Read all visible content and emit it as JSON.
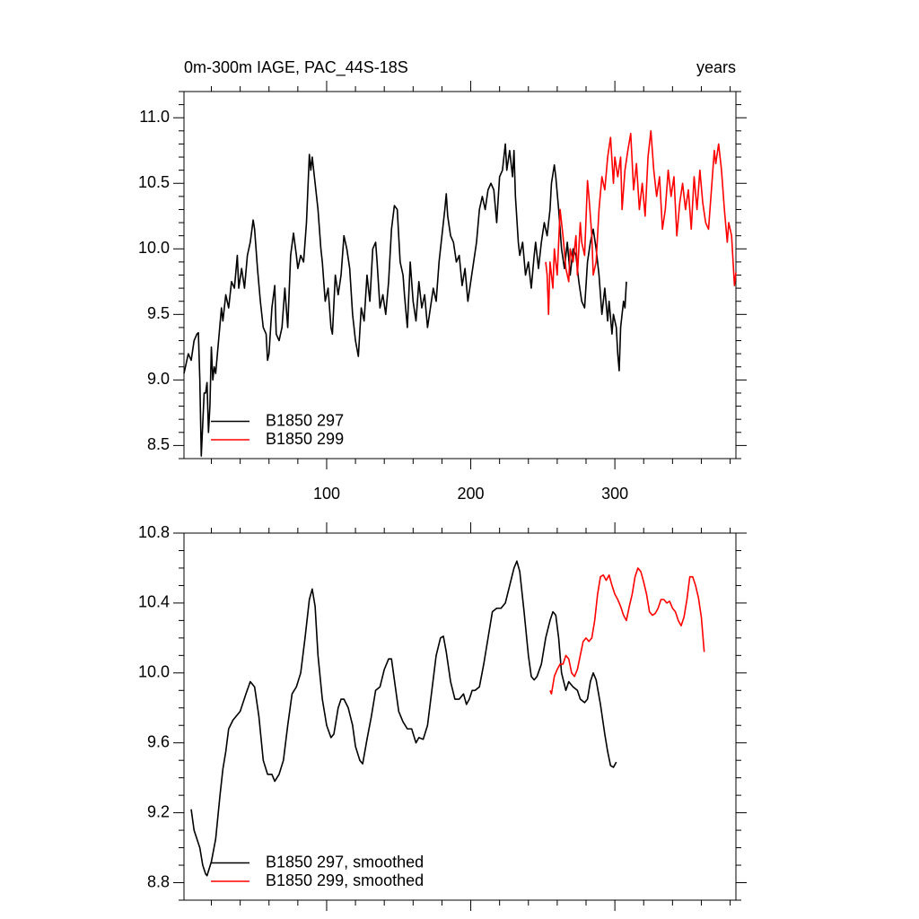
{
  "chart_data": [
    {
      "type": "line",
      "title": "0m-300m IAGE, PAC_44S-18S",
      "right_title": "years",
      "xlim": [
        1,
        384
      ],
      "xticks": [
        100,
        200,
        300
      ],
      "xminor": 5,
      "ylim": [
        8.4,
        11.2
      ],
      "yticks": [
        {
          "value": 8.5,
          "label": "8.5"
        },
        {
          "value": 9.0,
          "label": "9.0"
        },
        {
          "value": 9.5,
          "label": "9.5"
        },
        {
          "value": 10.0,
          "label": "10.0"
        },
        {
          "value": 10.5,
          "label": "10.5"
        },
        {
          "value": 11.0,
          "label": "11.0"
        }
      ],
      "yminor": 5,
      "xtick_labels": true,
      "legend": "bottom-left",
      "series": [
        {
          "name": "B1850 297",
          "color": "#000000",
          "x": [
            1,
            4,
            6,
            8,
            10,
            11,
            12,
            13,
            15,
            16,
            17,
            18,
            19,
            20,
            21,
            22,
            23,
            25,
            27,
            28,
            30,
            32,
            34,
            36,
            38,
            39,
            41,
            43,
            45,
            47,
            49,
            50,
            52,
            54,
            56,
            58,
            59,
            60,
            62,
            64,
            65,
            67,
            69,
            71,
            73,
            75,
            77,
            79,
            80,
            82,
            84,
            86,
            88,
            89,
            90,
            92,
            94,
            96,
            97,
            99,
            101,
            103,
            104,
            106,
            108,
            110,
            112,
            114,
            116,
            118,
            120,
            122,
            124,
            126,
            128,
            130,
            132,
            134,
            135,
            137,
            139,
            141,
            143,
            145,
            147,
            149,
            151,
            153,
            154,
            156,
            158,
            160,
            162,
            164,
            166,
            168,
            170,
            172,
            174,
            176,
            178,
            180,
            182,
            183,
            184,
            186,
            188,
            190,
            192,
            194,
            196,
            198,
            200,
            202,
            204,
            206,
            208,
            210,
            212,
            214,
            216,
            218,
            220,
            222,
            224,
            225,
            227,
            229,
            230,
            231,
            233,
            234,
            236,
            238,
            240,
            242,
            244,
            245,
            247,
            249,
            251,
            253,
            255,
            256,
            258,
            259,
            261,
            263,
            265,
            267,
            269,
            271,
            273,
            275,
            277,
            279,
            281,
            283,
            285,
            287,
            289,
            291,
            293,
            295,
            296,
            298,
            299,
            301,
            302,
            303,
            304,
            306,
            307,
            308
          ],
          "values": [
            9.05,
            9.2,
            9.15,
            9.3,
            9.35,
            9.36,
            9.0,
            8.42,
            8.9,
            8.9,
            8.98,
            8.6,
            8.8,
            9.25,
            9.0,
            9.1,
            9.05,
            9.3,
            9.55,
            9.45,
            9.65,
            9.55,
            9.75,
            9.7,
            9.95,
            9.7,
            9.85,
            9.7,
            9.95,
            10.05,
            10.22,
            10.15,
            9.85,
            9.6,
            9.4,
            9.35,
            9.15,
            9.2,
            9.55,
            9.72,
            9.35,
            9.3,
            9.4,
            9.7,
            9.4,
            9.95,
            10.12,
            9.95,
            9.85,
            9.95,
            9.9,
            10.2,
            10.72,
            10.6,
            10.7,
            10.5,
            10.3,
            10.0,
            9.9,
            9.6,
            9.7,
            9.4,
            9.35,
            9.8,
            9.65,
            9.8,
            10.1,
            10.0,
            9.85,
            9.5,
            9.3,
            9.18,
            9.55,
            9.45,
            9.8,
            9.6,
            10.0,
            10.05,
            9.9,
            9.55,
            9.65,
            9.5,
            9.75,
            10.15,
            10.33,
            10.3,
            9.9,
            9.8,
            9.65,
            9.4,
            9.9,
            9.6,
            9.45,
            9.75,
            9.55,
            9.65,
            9.4,
            9.55,
            9.7,
            9.6,
            9.9,
            10.1,
            10.3,
            10.42,
            10.25,
            10.1,
            10.05,
            9.9,
            9.95,
            9.72,
            9.85,
            9.6,
            9.75,
            9.9,
            10.05,
            10.3,
            10.4,
            10.3,
            10.45,
            10.5,
            10.45,
            10.2,
            10.55,
            10.6,
            10.8,
            10.6,
            10.75,
            10.55,
            10.75,
            10.4,
            10.05,
            9.95,
            10.05,
            9.8,
            9.9,
            9.7,
            9.95,
            10.05,
            9.85,
            10.05,
            10.2,
            10.1,
            10.3,
            10.5,
            10.64,
            10.55,
            10.3,
            10.0,
            9.85,
            10.05,
            9.8,
            10.0,
            9.95,
            9.75,
            9.6,
            9.55,
            9.9,
            10.05,
            10.15,
            10.0,
            9.8,
            9.5,
            9.7,
            9.45,
            9.6,
            9.35,
            9.5,
            9.4,
            9.2,
            9.07,
            9.4,
            9.6,
            9.55,
            9.75
          ]
        },
        {
          "name": "B1850 299",
          "color": "#ff0000",
          "x": [
            252,
            253,
            254,
            255,
            257,
            258,
            260,
            262,
            264,
            266,
            268,
            269,
            271,
            273,
            274,
            276,
            277,
            279,
            281,
            282,
            284,
            285,
            287,
            289,
            291,
            293,
            295,
            297,
            299,
            300,
            302,
            304,
            305,
            307,
            309,
            311,
            313,
            315,
            317,
            319,
            321,
            323,
            325,
            327,
            329,
            331,
            333,
            335,
            337,
            339,
            341,
            343,
            345,
            347,
            349,
            351,
            353,
            355,
            357,
            359,
            361,
            363,
            365,
            367,
            369,
            370,
            372,
            374,
            376,
            378,
            379,
            381,
            383,
            384
          ],
          "values": [
            9.9,
            9.8,
            9.5,
            9.9,
            9.7,
            10.0,
            9.8,
            10.3,
            10.1,
            9.85,
            9.75,
            10.0,
            9.9,
            10.1,
            9.8,
            10.2,
            10.05,
            9.95,
            10.52,
            10.4,
            10.1,
            9.8,
            9.9,
            10.3,
            10.55,
            10.45,
            10.7,
            10.85,
            10.5,
            10.7,
            10.55,
            10.7,
            10.3,
            10.6,
            10.75,
            10.88,
            10.45,
            10.65,
            10.3,
            10.5,
            10.25,
            10.7,
            10.9,
            10.6,
            10.4,
            10.55,
            10.15,
            10.3,
            10.6,
            10.4,
            10.55,
            10.1,
            10.35,
            10.5,
            10.3,
            10.45,
            10.15,
            10.55,
            10.3,
            10.6,
            10.35,
            10.2,
            10.15,
            10.45,
            10.75,
            10.65,
            10.8,
            10.6,
            10.3,
            10.05,
            10.2,
            10.1,
            9.72,
            9.82
          ]
        }
      ]
    },
    {
      "type": "line",
      "xlim": [
        1,
        384
      ],
      "xticks": [
        100,
        200,
        300
      ],
      "xminor": 5,
      "ylim": [
        8.7,
        10.8
      ],
      "yticks": [
        {
          "value": 8.8,
          "label": "8.8"
        },
        {
          "value": 9.2,
          "label": "9.2"
        },
        {
          "value": 9.6,
          "label": "9.6"
        },
        {
          "value": 10.0,
          "label": "10.0"
        },
        {
          "value": 10.4,
          "label": "10.4"
        },
        {
          "value": 10.8,
          "label": "10.8"
        }
      ],
      "yminor": 4,
      "xtick_labels": false,
      "legend": "bottom-left",
      "series": [
        {
          "name": "B1850 297, smoothed",
          "color": "#000000",
          "x": [
            6,
            8,
            10,
            12,
            14,
            16,
            17,
            20,
            23,
            26,
            28,
            30,
            32,
            35,
            40,
            44,
            47,
            50,
            53,
            56,
            59,
            62,
            64,
            67,
            70,
            73,
            76,
            79,
            82,
            85,
            88,
            90,
            92,
            94,
            97,
            100,
            103,
            105,
            108,
            110,
            112,
            115,
            118,
            120,
            123,
            125,
            128,
            131,
            134,
            137,
            140,
            143,
            145,
            148,
            150,
            153,
            156,
            159,
            162,
            164,
            167,
            170,
            173,
            176,
            179,
            181,
            183,
            186,
            189,
            192,
            195,
            197,
            199,
            201,
            203,
            206,
            209,
            212,
            215,
            218,
            221,
            224,
            227,
            230,
            232,
            234,
            237,
            240,
            242,
            244,
            246,
            249,
            252,
            255,
            257,
            259,
            261,
            263,
            266,
            268,
            271,
            274,
            276,
            279,
            281,
            283,
            285,
            287,
            290,
            293,
            295,
            297,
            299,
            301
          ],
          "values": [
            9.22,
            9.1,
            9.05,
            9.0,
            8.9,
            8.85,
            8.84,
            8.92,
            9.05,
            9.3,
            9.45,
            9.55,
            9.68,
            9.73,
            9.78,
            9.88,
            9.95,
            9.92,
            9.75,
            9.5,
            9.42,
            9.42,
            9.38,
            9.42,
            9.5,
            9.7,
            9.88,
            9.92,
            10.0,
            10.2,
            10.42,
            10.48,
            10.38,
            10.1,
            9.85,
            9.7,
            9.63,
            9.65,
            9.8,
            9.85,
            9.85,
            9.8,
            9.7,
            9.58,
            9.5,
            9.48,
            9.62,
            9.75,
            9.9,
            9.92,
            10.02,
            10.08,
            10.08,
            9.9,
            9.78,
            9.72,
            9.68,
            9.68,
            9.6,
            9.63,
            9.62,
            9.7,
            9.9,
            10.1,
            10.2,
            10.21,
            10.12,
            9.95,
            9.85,
            9.85,
            9.88,
            9.82,
            9.85,
            9.9,
            9.9,
            9.92,
            10.05,
            10.2,
            10.35,
            10.37,
            10.37,
            10.4,
            10.5,
            10.6,
            10.64,
            10.58,
            10.35,
            10.1,
            9.98,
            9.96,
            9.98,
            10.05,
            10.2,
            10.3,
            10.35,
            10.33,
            10.2,
            10.0,
            9.9,
            9.95,
            9.92,
            9.9,
            9.85,
            9.83,
            9.85,
            9.95,
            10.0,
            9.96,
            9.82,
            9.65,
            9.55,
            9.47,
            9.46,
            9.49
          ]
        },
        {
          "name": "B1850 299, smoothed",
          "color": "#ff0000",
          "x": [
            255,
            256,
            258,
            260,
            262,
            264,
            266,
            268,
            270,
            272,
            274,
            276,
            278,
            280,
            282,
            284,
            286,
            288,
            290,
            292,
            294,
            296,
            298,
            300,
            302,
            304,
            306,
            308,
            310,
            312,
            314,
            316,
            318,
            320,
            322,
            324,
            326,
            328,
            330,
            332,
            334,
            336,
            338,
            340,
            342,
            344,
            346,
            348,
            350,
            352,
            354,
            356,
            358,
            360,
            362
          ],
          "values": [
            9.9,
            9.88,
            9.98,
            10.02,
            10.05,
            10.05,
            10.1,
            10.08,
            10.0,
            9.98,
            10.02,
            10.1,
            10.18,
            10.2,
            10.18,
            10.2,
            10.3,
            10.45,
            10.55,
            10.56,
            10.53,
            10.56,
            10.5,
            10.45,
            10.42,
            10.38,
            10.33,
            10.3,
            10.38,
            10.45,
            10.55,
            10.6,
            10.58,
            10.52,
            10.45,
            10.35,
            10.33,
            10.34,
            10.37,
            10.42,
            10.42,
            10.4,
            10.41,
            10.37,
            10.35,
            10.3,
            10.27,
            10.32,
            10.42,
            10.55,
            10.55,
            10.5,
            10.43,
            10.32,
            10.12
          ]
        }
      ]
    }
  ]
}
